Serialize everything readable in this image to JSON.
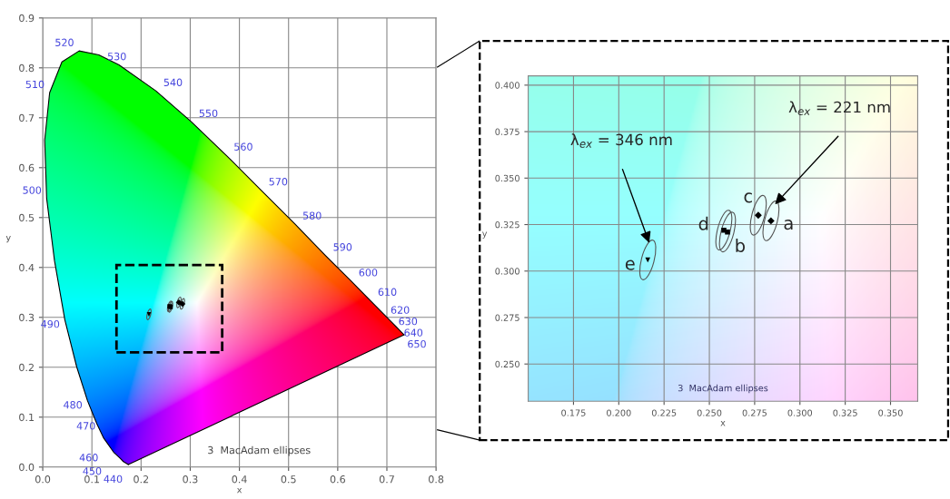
{
  "chart_data": [
    {
      "type": "scatter",
      "xlabel": "x",
      "ylabel": "y",
      "xlim": [
        0,
        0.8
      ],
      "ylim": [
        0,
        0.9
      ],
      "xticks": [
        {
          "value": 0,
          "label": "0.0"
        },
        0.1,
        0.2,
        0.3,
        0.4,
        0.5,
        0.6,
        0.7,
        0.8
      ],
      "yticks": [
        {
          "value": 0,
          "label": "0.0"
        },
        0.1,
        0.2,
        0.3,
        0.4,
        0.5,
        0.6,
        0.7,
        0.8,
        0.9
      ],
      "grid": true,
      "series": [
        {
          "type": "line",
          "color": "#000000",
          "x": [
            0.174,
            0.164,
            0.157,
            0.144,
            0.124,
            0.11,
            0.091,
            0.069,
            0.045,
            0.024,
            0.008,
            0.004,
            0.014,
            0.039,
            0.074,
            0.114,
            0.155,
            0.23,
            0.302,
            0.373,
            0.444,
            0.513,
            0.575,
            0.627,
            0.666,
            0.692,
            0.708,
            0.719,
            0.726,
            0.735
          ],
          "values": [
            0.005,
            0.011,
            0.018,
            0.03,
            0.058,
            0.087,
            0.133,
            0.201,
            0.295,
            0.413,
            0.538,
            0.655,
            0.75,
            0.812,
            0.834,
            0.826,
            0.806,
            0.754,
            0.692,
            0.625,
            0.555,
            0.487,
            0.424,
            0.373,
            0.334,
            0.308,
            0.292,
            0.281,
            0.274,
            0.265
          ]
        },
        {
          "type": "line",
          "color": "#000000",
          "x": [
            0.735,
            0.174
          ],
          "values": [
            0.265,
            0.005
          ]
        },
        {
          "marker": "diamond",
          "color": "#000000",
          "x": [
            0.284,
            0.277
          ],
          "values": [
            0.327,
            0.33
          ]
        },
        {
          "marker": "square",
          "color": "#000000",
          "x": [
            0.26,
            0.258
          ],
          "values": [
            0.321,
            0.322
          ]
        },
        {
          "marker": "triangle",
          "color": "#000000",
          "x": [
            0.216
          ],
          "values": [
            0.306
          ]
        }
      ],
      "annotations": [
        {
          "text": "440",
          "x": 0.164,
          "y": 0.011
        },
        {
          "text": "450",
          "x": 0.157,
          "y": 0.018
        },
        {
          "text": "460",
          "x": 0.144,
          "y": 0.03
        },
        {
          "text": "470",
          "x": 0.124,
          "y": 0.058
        },
        {
          "text": "480",
          "x": 0.091,
          "y": 0.133
        },
        {
          "text": "490",
          "x": 0.045,
          "y": 0.295
        },
        {
          "text": "500",
          "x": 0.008,
          "y": 0.538
        },
        {
          "text": "510",
          "x": 0.014,
          "y": 0.75
        },
        {
          "text": "520",
          "x": 0.074,
          "y": 0.834
        },
        {
          "text": "530",
          "x": 0.155,
          "y": 0.806
        },
        {
          "text": "540",
          "x": 0.23,
          "y": 0.754
        },
        {
          "text": "550",
          "x": 0.302,
          "y": 0.692
        },
        {
          "text": "560",
          "x": 0.373,
          "y": 0.625
        },
        {
          "text": "570",
          "x": 0.444,
          "y": 0.555
        },
        {
          "text": "580",
          "x": 0.513,
          "y": 0.487
        },
        {
          "text": "590",
          "x": 0.575,
          "y": 0.424
        },
        {
          "text": "600",
          "x": 0.627,
          "y": 0.373
        },
        {
          "text": "610",
          "x": 0.666,
          "y": 0.334
        },
        {
          "text": "620",
          "x": 0.692,
          "y": 0.308
        },
        {
          "text": "630",
          "x": 0.708,
          "y": 0.292
        },
        {
          "text": "640",
          "x": 0.719,
          "y": 0.281
        },
        {
          "text": "650",
          "x": 0.726,
          "y": 0.274
        },
        "3  MacAdam ellipses"
      ]
    },
    {
      "type": "scatter",
      "xlabel": "x",
      "ylabel": "y",
      "xlim": [
        0.15,
        0.365
      ],
      "ylim": [
        0.23,
        0.405
      ],
      "xticks": [
        0.175,
        {
          "value": 0.2,
          "label": "0.200"
        },
        0.225,
        {
          "value": 0.25,
          "label": "0.250"
        },
        0.275,
        {
          "value": 0.3,
          "label": "0.300"
        },
        0.325,
        {
          "value": 0.35,
          "label": "0.350"
        }
      ],
      "yticks": [
        {
          "value": 0.25,
          "label": "0.250"
        },
        0.275,
        {
          "value": 0.3,
          "label": "0.300"
        },
        0.325,
        {
          "value": 0.35,
          "label": "0.350"
        },
        0.375,
        {
          "value": 0.4,
          "label": "0.400"
        }
      ],
      "grid": true,
      "series": [
        {
          "marker": "diamond",
          "color": "#000000",
          "x": [
            0.284,
            0.277
          ],
          "values": [
            0.327,
            0.33
          ]
        },
        {
          "marker": "square",
          "color": "#000000",
          "x": [
            0.26,
            0.258
          ],
          "values": [
            0.321,
            0.322
          ]
        },
        {
          "marker": "triangle",
          "color": "#000000",
          "x": [
            0.216
          ],
          "values": [
            0.306
          ]
        }
      ],
      "annotations": [
        {
          "text": "a",
          "x": 0.284,
          "y": 0.327
        },
        {
          "text": "b",
          "x": 0.26,
          "y": 0.321
        },
        {
          "text": "c",
          "x": 0.277,
          "y": 0.33
        },
        {
          "text": "d",
          "x": 0.258,
          "y": 0.322
        },
        {
          "text": "e",
          "x": 0.216,
          "y": 0.306
        },
        "λ$_{ex}$ = 221 nm",
        "λ$_{ex}$ = 346 nm",
        "3  MacAdam ellipses"
      ]
    }
  ]
}
